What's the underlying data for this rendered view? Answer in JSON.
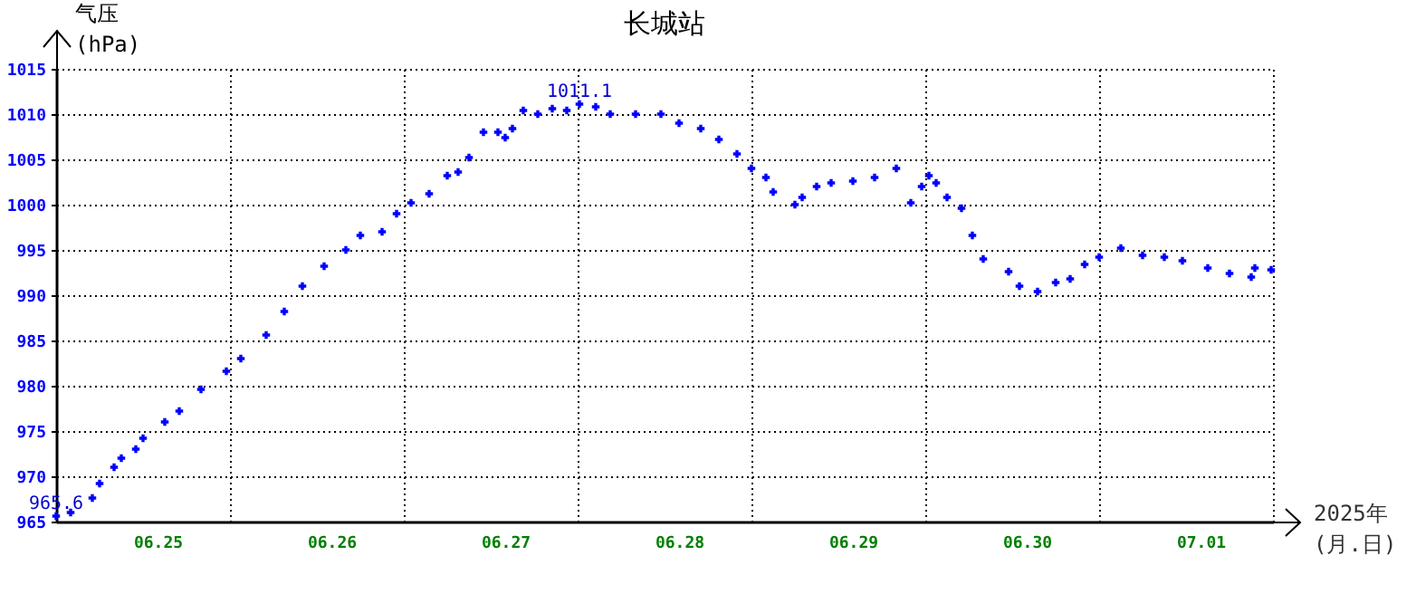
{
  "chart_data": {
    "type": "scatter",
    "title": "长城站",
    "xlabel": "2025年 (月.日)",
    "ylabel": "气压 (hPa)",
    "xlim": [
      "2025-06-25T00:00",
      "2025-07-02T00:00"
    ],
    "xticks": [
      {
        "value": "2025-06-25T14:00",
        "label": "06.25"
      },
      {
        "value": "2025-06-26T00:00",
        "label": null
      },
      {
        "value": "2025-06-26T14:00",
        "label": "06.26"
      },
      {
        "value": "2025-06-27T00:00",
        "label": null
      },
      {
        "value": "2025-06-27T14:00",
        "label": "06.27"
      },
      {
        "value": "2025-06-28T00:00",
        "label": null
      },
      {
        "value": "2025-06-28T14:00",
        "label": "06.28"
      },
      {
        "value": "2025-06-29T00:00",
        "label": null
      },
      {
        "value": "2025-06-29T14:00",
        "label": "06.29"
      },
      {
        "value": "2025-06-30T00:00",
        "label": null
      },
      {
        "value": "2025-06-30T14:00",
        "label": "06.30"
      },
      {
        "value": "2025-07-01T00:00",
        "label": null
      },
      {
        "value": "2025-07-01T14:00",
        "label": "07.01"
      },
      {
        "value": "2025-07-02T00:00",
        "label": null
      }
    ],
    "ylim": [
      965,
      1015
    ],
    "yticks": [
      965,
      970,
      975,
      980,
      985,
      990,
      995,
      1000,
      1005,
      1010,
      1015
    ],
    "grid": true,
    "marker": "cross",
    "x": [
      "2025-06-25T00:00",
      "2025-06-25T02:00",
      "2025-06-25T05:00",
      "2025-06-25T06:00",
      "2025-06-25T08:00",
      "2025-06-25T09:00",
      "2025-06-25T11:00",
      "2025-06-25T12:00",
      "2025-06-25T15:00",
      "2025-06-25T17:00",
      "2025-06-25T20:00",
      "2025-06-25T23:30",
      "2025-06-26T01:30",
      "2025-06-26T05:00",
      "2025-06-26T07:30",
      "2025-06-26T10:00",
      "2025-06-26T13:00",
      "2025-06-26T16:00",
      "2025-06-26T18:00",
      "2025-06-26T21:00",
      "2025-06-26T23:00",
      "2025-06-27T01:00",
      "2025-06-27T03:30",
      "2025-06-27T06:00",
      "2025-06-27T07:30",
      "2025-06-27T09:00",
      "2025-06-27T11:00",
      "2025-06-27T13:00",
      "2025-06-27T14:00",
      "2025-06-27T15:00",
      "2025-06-27T16:30",
      "2025-06-27T18:30",
      "2025-06-27T20:30",
      "2025-06-27T22:30",
      "2025-06-28T00:15",
      "2025-06-28T02:30",
      "2025-06-28T04:30",
      "2025-06-28T08:00",
      "2025-06-28T11:30",
      "2025-06-28T14:00",
      "2025-06-28T17:00",
      "2025-06-28T19:30",
      "2025-06-28T22:00",
      "2025-06-29T00:00",
      "2025-06-29T02:00",
      "2025-06-29T03:00",
      "2025-06-29T06:00",
      "2025-06-29T07:00",
      "2025-06-29T09:00",
      "2025-06-29T11:00",
      "2025-06-29T14:00",
      "2025-06-29T17:00",
      "2025-06-29T20:00",
      "2025-06-29T22:00",
      "2025-06-29T23:30",
      "2025-06-30T00:30",
      "2025-06-30T01:30",
      "2025-06-30T03:00",
      "2025-06-30T05:00",
      "2025-06-30T06:30",
      "2025-06-30T08:00",
      "2025-06-30T11:30",
      "2025-06-30T13:00",
      "2025-06-30T15:30",
      "2025-06-30T18:00",
      "2025-06-30T20:00",
      "2025-06-30T22:00",
      "2025-07-01T00:00",
      "2025-07-01T03:00",
      "2025-07-01T06:00",
      "2025-07-01T09:00",
      "2025-07-01T11:30",
      "2025-07-01T15:00",
      "2025-07-01T18:00",
      "2025-07-01T21:00",
      "2025-07-01T21:30",
      "2025-07-01T23:45"
    ],
    "series": [
      {
        "color": "#0000ff",
        "values": [
          965.6,
          966,
          967.6,
          969.2,
          971,
          972,
          973,
          974.2,
          976,
          977.2,
          979.6,
          981.6,
          983,
          985.6,
          988.2,
          991,
          993.2,
          995,
          996.6,
          997,
          999,
          1000.2,
          1001.2,
          1003.2,
          1003.6,
          1005.2,
          1008,
          1008,
          1007.4,
          1008.4,
          1010.4,
          1010,
          1010.6,
          1010.4,
          1011.1,
          1010.8,
          1010,
          1010,
          1010,
          1009,
          1008.4,
          1007.2,
          1005.6,
          1004,
          1003,
          1001.4,
          1000,
          1000.8,
          1002,
          1002.4,
          1002.6,
          1003,
          1004,
          1000.2,
          1002,
          1003.2,
          1002.4,
          1000.8,
          999.6,
          996.6,
          994,
          992.6,
          991,
          990.4,
          991.4,
          991.8,
          993.4,
          994.2,
          995.2,
          994.4,
          994.2,
          993.8,
          993,
          992.4,
          992,
          993,
          992.8
        ]
      }
    ],
    "annotations": [
      {
        "text": "1011.1",
        "x": "2025-06-28T00:15",
        "y": 1011.1
      },
      {
        "text": "965.6",
        "x": "2025-06-25T00:00",
        "y": 965.6
      }
    ]
  }
}
